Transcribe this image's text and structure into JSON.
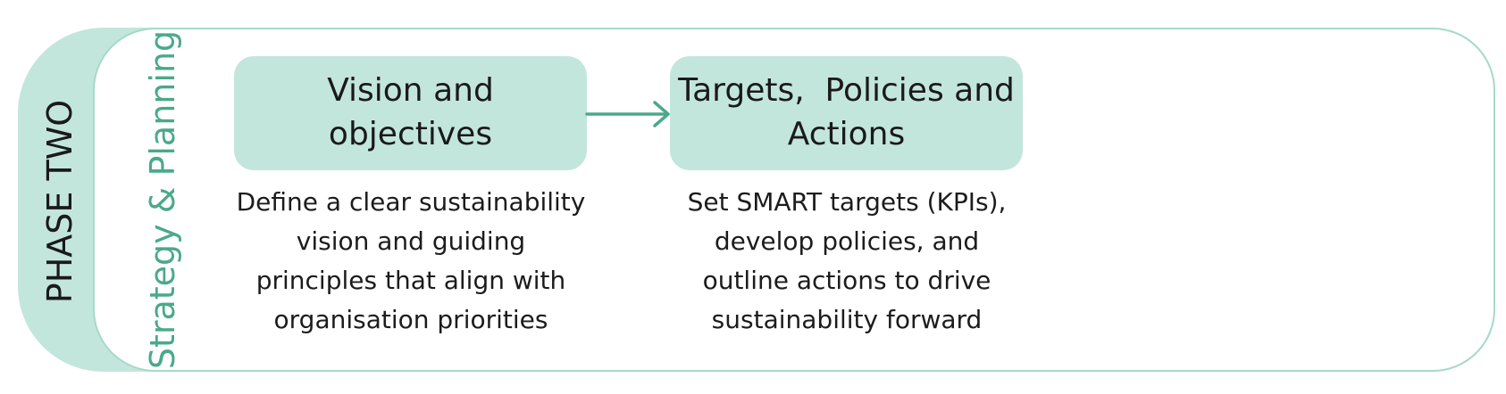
{
  "phase": {
    "label": "PHASE TWO"
  },
  "stage": {
    "label": "Strategy & Planning"
  },
  "steps": [
    {
      "title": "Vision and objectives",
      "description": "Define a clear sustainability vision and guiding principles that align with organisation priorities"
    },
    {
      "title": "Targets,  Policies and Actions",
      "description": "Set SMART targets (KPIs), develop policies, and outline actions to drive sustainability forward"
    }
  ],
  "colors": {
    "box_fill": "#c3e6dc",
    "accent": "#4aa98a",
    "frame_border": "#a6d9c9"
  }
}
